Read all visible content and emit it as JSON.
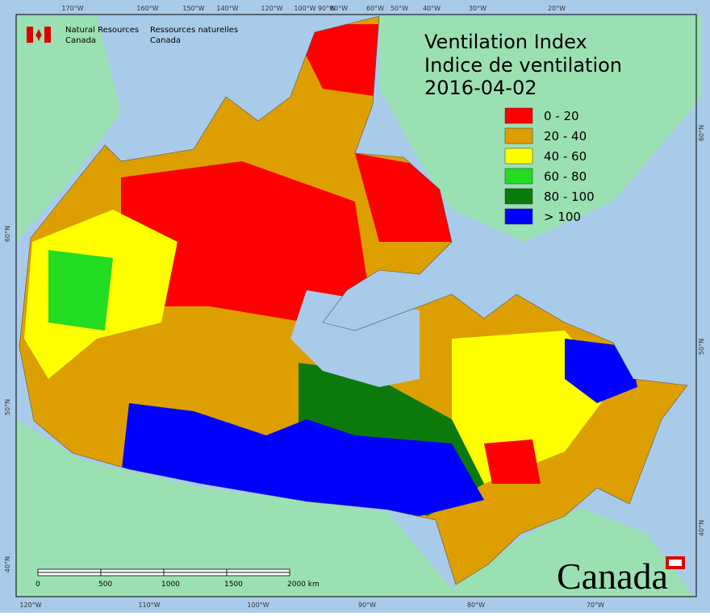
{
  "title": {
    "line1": "Ventilation Index",
    "line2": "Indice de ventilation",
    "date": "2016-04-02"
  },
  "organization": {
    "english": [
      "Natural Resources",
      "Canada"
    ],
    "french": [
      "Ressources naturelles",
      "Canada"
    ]
  },
  "legend": [
    {
      "label": "0 - 20",
      "color": "#ff0000"
    },
    {
      "label": "20 - 40",
      "color": "#dd9f00"
    },
    {
      "label": "40 - 60",
      "color": "#ffff00"
    },
    {
      "label": "60 - 80",
      "color": "#22dd22"
    },
    {
      "label": "80 - 100",
      "color": "#0b7a0b"
    },
    {
      "label": "> 100",
      "color": "#0000ff"
    }
  ],
  "graticule": {
    "top": [
      "170°W",
      "160°W",
      "150°W",
      "140°W",
      "120°W",
      "100°W",
      "90°W",
      "80°W",
      "60°W",
      "50°W",
      "40°W",
      "30°W",
      "20°W"
    ],
    "bottom": [
      "120°W",
      "110°W",
      "100°W",
      "90°W",
      "80°W",
      "70°W"
    ],
    "left": [
      "60°N",
      "50°N",
      "40°N"
    ],
    "right": [
      "60°N",
      "50°N",
      "40°N"
    ]
  },
  "scale_bar": [
    "0",
    "500",
    "1000",
    "1500",
    "2000 km"
  ],
  "wordmark": "Canada"
}
